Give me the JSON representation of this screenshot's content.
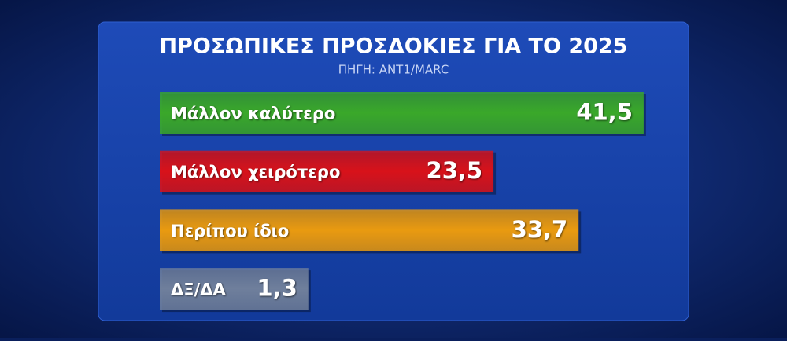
{
  "chart_data": {
    "type": "bar",
    "orientation": "horizontal",
    "title": "ΠΡΟΣΩΠΙΚΕΣ ΠΡΟΣΔΟΚΙΕΣ ΓΙΑ ΤΟ 2025",
    "subtitle": "ΠΗΓΗ: ANT1/MARC",
    "categories": [
      "Μάλλον καλύτερο",
      "Μάλλον χειρότερο",
      "Περίπου ίδιο",
      "ΔΞ/ΔΑ"
    ],
    "values": [
      41.5,
      23.5,
      33.7,
      1.3
    ],
    "value_labels": [
      "41,5",
      "23,5",
      "33,7",
      "1,3"
    ],
    "colors": [
      "#3aa82a",
      "#d8121a",
      "#e99a10",
      "#6f7f9c"
    ]
  }
}
